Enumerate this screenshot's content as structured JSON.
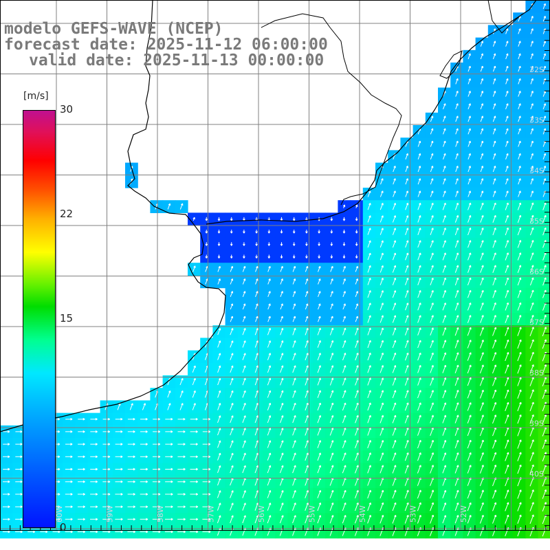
{
  "title": {
    "line1": "modelo GEFS-WAVE (NCEP)",
    "line2": "forecast date: 2025-11-12 06:00:00",
    "line3": "valid date: 2025-11-13 00:00:00"
  },
  "colorbar": {
    "unit": "[m/s]",
    "ticks": [
      "30",
      "22",
      "15",
      "0"
    ],
    "colors": [
      "#0014ff",
      "#00b0ff",
      "#00e8ff",
      "#00dd00",
      "#ffff00",
      "#ff5000",
      "#ff0000",
      "#c01090"
    ]
  },
  "map": {
    "lat_labels": [
      "32S",
      "33S",
      "34S",
      "35S",
      "36S",
      "37S",
      "38S",
      "39S",
      "40S"
    ],
    "lon_labels": [
      "60W",
      "59W",
      "58W",
      "57W",
      "56W",
      "55W",
      "54W",
      "53W",
      "52W"
    ],
    "grid_color": "#808080",
    "coast_color": "#000000"
  }
}
